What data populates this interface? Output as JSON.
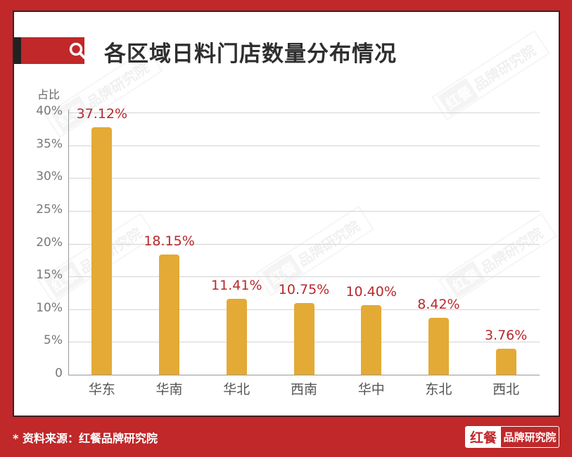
{
  "header": {
    "title": "各区域日料门店数量分布情况",
    "icon": "search-icon"
  },
  "footer": {
    "source": "* 资料来源：红餐品牌研究院",
    "logo_mark": "红餐",
    "logo_text": "品牌研究院"
  },
  "watermark": {
    "mark": "红餐",
    "text": "品牌研究院"
  },
  "colors": {
    "frame": "#c0282a",
    "bar": "#e3aa36",
    "value_label": "#b8282c"
  },
  "chart_data": {
    "type": "bar",
    "title": "各区域日料门店数量分布情况",
    "xlabel": "",
    "ylabel": "占比",
    "ylim": [
      0,
      40
    ],
    "yticks": [
      "0",
      "5%",
      "10%",
      "15%",
      "20%",
      "25%",
      "30%",
      "35%",
      "40%"
    ],
    "grid": true,
    "legend": null,
    "categories": [
      "华东",
      "华南",
      "华北",
      "西南",
      "华中",
      "东北",
      "西北"
    ],
    "values": [
      37.12,
      18.15,
      11.41,
      10.75,
      10.4,
      8.42,
      3.76
    ],
    "labels": [
      "37.12%",
      "18.15%",
      "11.41%",
      "10.75%",
      "10.40%",
      "8.42%",
      "3.76%"
    ]
  }
}
